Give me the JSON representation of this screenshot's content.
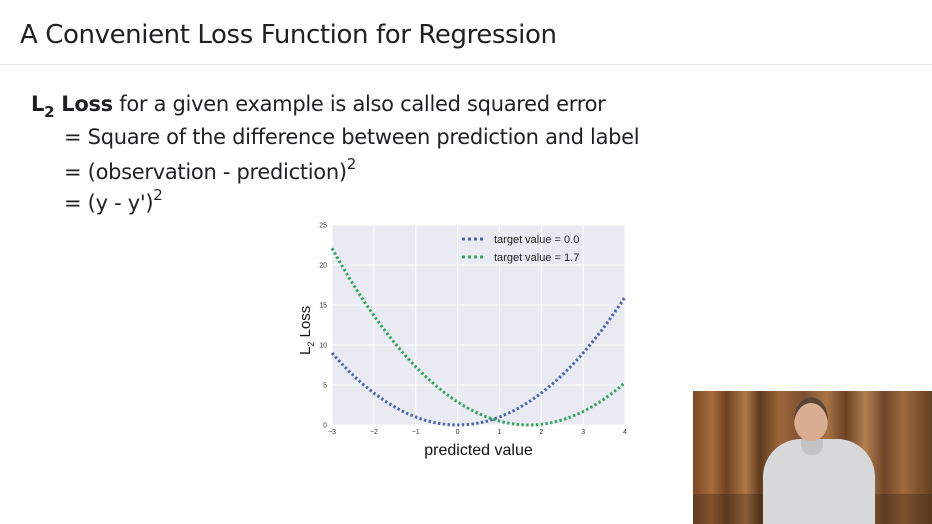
{
  "slide": {
    "title": "A Convenient Loss Function for Regression",
    "line1": {
      "l": "L",
      "sub": "2",
      "bold_rest": " Loss",
      "rest": " for a given example is also called squared error"
    },
    "line2": "= Square of the difference between prediction and label",
    "line3": {
      "text": "= (observation - prediction)",
      "sup": "2"
    },
    "line4": {
      "text": "= (y - y')",
      "sup": "2"
    }
  },
  "chart_data": {
    "type": "line",
    "xlabel": "predicted value",
    "ylabel": "L2 Loss",
    "ylabel_main": "L",
    "ylabel_sub": "2",
    "ylabel_rest": " Loss",
    "xlim": [
      -3,
      4
    ],
    "ylim": [
      0,
      25
    ],
    "xticks": [
      "−3",
      "−2",
      "−1",
      "0",
      "1",
      "2",
      "3",
      "4"
    ],
    "yticks": [
      "0",
      "5",
      "10",
      "15",
      "20",
      "25"
    ],
    "grid": true,
    "legend_position": "top-right",
    "series": [
      {
        "name": "target value = 0.0",
        "color": "#4c62b3",
        "target": 0.0,
        "x": [
          -3,
          -2,
          -1,
          0,
          1,
          2,
          3,
          4
        ],
        "y": [
          9,
          4,
          1,
          0,
          1,
          4,
          9,
          16
        ]
      },
      {
        "name": "target value = 1.7",
        "color": "#2ea55a",
        "target": 1.7,
        "x": [
          -3,
          -2,
          -1,
          0,
          1,
          2,
          3,
          4
        ],
        "y": [
          22.09,
          13.69,
          7.29,
          2.89,
          0.49,
          0.09,
          1.69,
          5.29
        ]
      }
    ]
  }
}
